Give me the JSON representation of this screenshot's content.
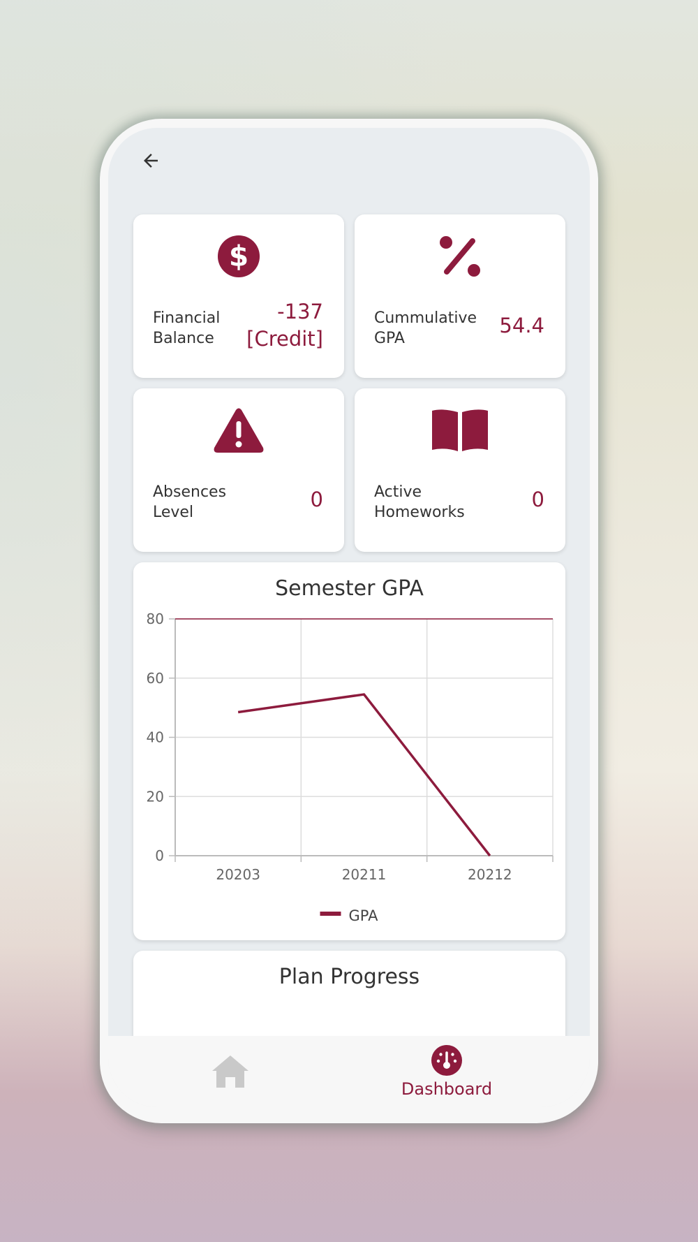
{
  "colors": {
    "accent": "#8d1b3d",
    "card": "#ffffff",
    "screen_bg": "#e9edf0",
    "inactive_icon": "#c9c9c9"
  },
  "header": {
    "back_icon": "arrow-left-icon"
  },
  "stats": [
    {
      "icon": "dollar-circle-icon",
      "label": "Financial Balance",
      "value_line1": "-137",
      "value_line2": "[Credit]"
    },
    {
      "icon": "percent-icon",
      "label": "Cummulative GPA",
      "value_line1": "54.4"
    },
    {
      "icon": "warning-triangle-icon",
      "label": "Absences Level",
      "value_line1": "0"
    },
    {
      "icon": "open-book-icon",
      "label": "Active Homeworks",
      "value_line1": "0"
    }
  ],
  "semester_chart": {
    "title": "Semester GPA",
    "legend_label": "GPA"
  },
  "chart_data": {
    "type": "line",
    "title": "Semester GPA",
    "categories": [
      "20203",
      "20211",
      "20212"
    ],
    "series": [
      {
        "name": "GPA",
        "values": [
          48.5,
          54.5,
          0
        ]
      }
    ],
    "xlabel": "",
    "ylabel": "",
    "ylim": [
      0,
      80
    ],
    "yticks": [
      0,
      20,
      40,
      60,
      80
    ],
    "grid": true,
    "legend": "bottom"
  },
  "plan_progress": {
    "title": "Plan Progress"
  },
  "nav": {
    "home_icon": "home-icon",
    "dashboard_icon": "dashboard-gauge-icon",
    "dashboard_label": "Dashboard"
  }
}
